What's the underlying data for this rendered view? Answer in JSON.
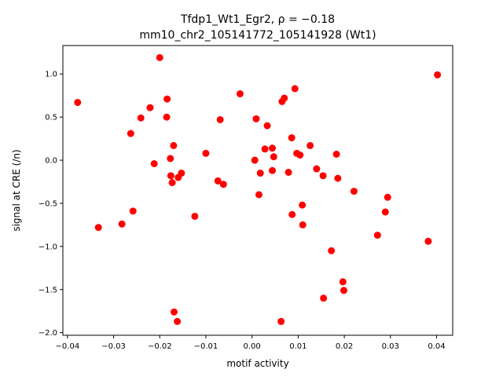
{
  "chart_data": {
    "type": "scatter",
    "title_line1": "Tfdp1_Wt1_Egr2, ρ = −0.18",
    "title_line2": "mm10_chr2_105141772_105141928 (Wt1)",
    "xlabel": "motif activity",
    "ylabel": "signal at CRE (/n)",
    "xlim": [
      -0.041,
      0.0435
    ],
    "ylim": [
      -2.03,
      1.33
    ],
    "xticks": [
      -0.04,
      -0.03,
      -0.02,
      -0.01,
      0.0,
      0.01,
      0.02,
      0.03,
      0.04
    ],
    "xtick_labels": [
      "−0.04",
      "−0.03",
      "−0.02",
      "−0.01",
      "0.00",
      "0.01",
      "0.02",
      "0.03",
      "0.04"
    ],
    "yticks": [
      -2.0,
      -1.5,
      -1.0,
      -0.5,
      0.0,
      0.5,
      1.0
    ],
    "ytick_labels": [
      "−2.0",
      "−1.5",
      "−1.0",
      "−0.5",
      "0.0",
      "0.5",
      "1.0"
    ],
    "grid": false,
    "marker_color": "#ff0000",
    "points": [
      {
        "x": -0.0378,
        "y": 0.67
      },
      {
        "x": -0.0333,
        "y": -0.78
      },
      {
        "x": -0.0282,
        "y": -0.74
      },
      {
        "x": -0.0263,
        "y": 0.31
      },
      {
        "x": -0.0258,
        "y": -0.59
      },
      {
        "x": -0.0241,
        "y": 0.49
      },
      {
        "x": -0.0221,
        "y": 0.61
      },
      {
        "x": -0.0212,
        "y": -0.04
      },
      {
        "x": -0.02,
        "y": 1.19
      },
      {
        "x": -0.0185,
        "y": 0.5
      },
      {
        "x": -0.0184,
        "y": 0.71
      },
      {
        "x": -0.0177,
        "y": 0.02
      },
      {
        "x": -0.0176,
        "y": -0.18
      },
      {
        "x": -0.0173,
        "y": -0.26
      },
      {
        "x": -0.017,
        "y": 0.17
      },
      {
        "x": -0.0169,
        "y": -1.76
      },
      {
        "x": -0.0162,
        "y": -1.87
      },
      {
        "x": -0.016,
        "y": -0.2
      },
      {
        "x": -0.0153,
        "y": -0.15
      },
      {
        "x": -0.0124,
        "y": -0.65
      },
      {
        "x": -0.01,
        "y": 0.08
      },
      {
        "x": -0.0074,
        "y": -0.24
      },
      {
        "x": -0.0069,
        "y": 0.47
      },
      {
        "x": -0.0062,
        "y": -0.28
      },
      {
        "x": -0.0026,
        "y": 0.77
      },
      {
        "x": 0.0006,
        "y": 0.0
      },
      {
        "x": 0.0009,
        "y": 0.48
      },
      {
        "x": 0.0015,
        "y": -0.4
      },
      {
        "x": 0.0018,
        "y": -0.15
      },
      {
        "x": 0.0028,
        "y": 0.13
      },
      {
        "x": 0.0033,
        "y": 0.4
      },
      {
        "x": 0.0044,
        "y": -0.12
      },
      {
        "x": 0.0044,
        "y": 0.14
      },
      {
        "x": 0.0047,
        "y": 0.04
      },
      {
        "x": 0.0063,
        "y": -1.87
      },
      {
        "x": 0.0065,
        "y": 0.68
      },
      {
        "x": 0.007,
        "y": 0.72
      },
      {
        "x": 0.0079,
        "y": -0.14
      },
      {
        "x": 0.0086,
        "y": 0.26
      },
      {
        "x": 0.0087,
        "y": -0.63
      },
      {
        "x": 0.0093,
        "y": 0.83
      },
      {
        "x": 0.0097,
        "y": 0.08
      },
      {
        "x": 0.0104,
        "y": 0.06
      },
      {
        "x": 0.0109,
        "y": -0.52
      },
      {
        "x": 0.011,
        "y": -0.75
      },
      {
        "x": 0.0126,
        "y": 0.17
      },
      {
        "x": 0.014,
        "y": -0.1
      },
      {
        "x": 0.0154,
        "y": -0.18
      },
      {
        "x": 0.0155,
        "y": -1.6
      },
      {
        "x": 0.0172,
        "y": -1.05
      },
      {
        "x": 0.0183,
        "y": 0.07
      },
      {
        "x": 0.0186,
        "y": -0.21
      },
      {
        "x": 0.0197,
        "y": -1.41
      },
      {
        "x": 0.0199,
        "y": -1.51
      },
      {
        "x": 0.0221,
        "y": -0.36
      },
      {
        "x": 0.0272,
        "y": -0.87
      },
      {
        "x": 0.0289,
        "y": -0.6
      },
      {
        "x": 0.0294,
        "y": -0.43
      },
      {
        "x": 0.0382,
        "y": -0.94
      },
      {
        "x": 0.0402,
        "y": 0.99
      }
    ]
  }
}
